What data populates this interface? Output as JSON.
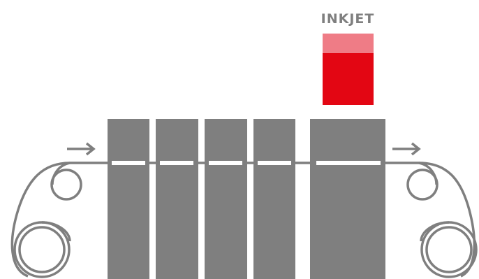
{
  "inkjet": {
    "label": "INKJET",
    "label_color": "#7f7f7f",
    "head_color": "#e30613",
    "head_top_color": "#ef7c86"
  },
  "colors": {
    "station": "#7f7f7f",
    "web_line": "#7f7f7f",
    "web_highlight": "#ffffff",
    "rollers": "#7f7f7f",
    "arrows": "#7f7f7f"
  },
  "icons": {
    "feed_in_arrow": "arrow-right-icon",
    "feed_out_arrow": "arrow-right-icon",
    "unwind_roller": "roller-icon",
    "rewind_roller": "roller-icon"
  }
}
